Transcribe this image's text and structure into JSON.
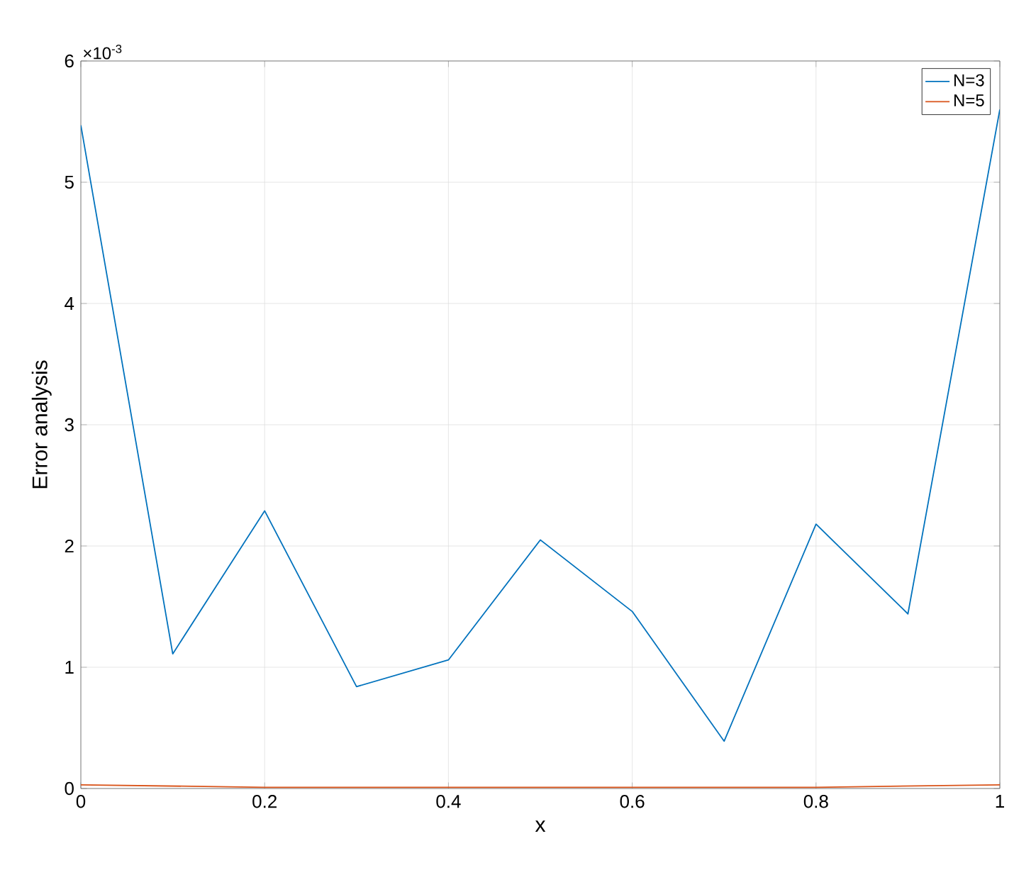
{
  "chart_data": {
    "type": "line",
    "xlabel": "x",
    "ylabel": "Error analysis",
    "annotations": [
      "×10$^{-3}$"
    ],
    "x": [
      0,
      0.1,
      0.2,
      0.3,
      0.4,
      0.5,
      0.6,
      0.7,
      0.8,
      0.9,
      1
    ],
    "series": [
      {
        "name": "N=3",
        "color": "#0072bd",
        "values": [
          5.47,
          1.11,
          2.29,
          0.84,
          1.06,
          2.05,
          1.46,
          0.39,
          2.18,
          1.44,
          5.6
        ]
      },
      {
        "name": "N=5",
        "color": "#d95319",
        "values": [
          0.03,
          0.02,
          0.01,
          0.01,
          0.01,
          0.01,
          0.01,
          0.01,
          0.01,
          0.02,
          0.03
        ]
      }
    ],
    "xlim": [
      0,
      1
    ],
    "ylim": [
      0,
      6
    ],
    "xticks": [
      0,
      0.2,
      0.4,
      0.6,
      0.8,
      1
    ],
    "yticks": [
      0,
      1,
      2,
      3,
      4,
      5,
      6
    ],
    "grid": true,
    "legend": "top right",
    "marker": "none",
    "line_style": "solid"
  }
}
